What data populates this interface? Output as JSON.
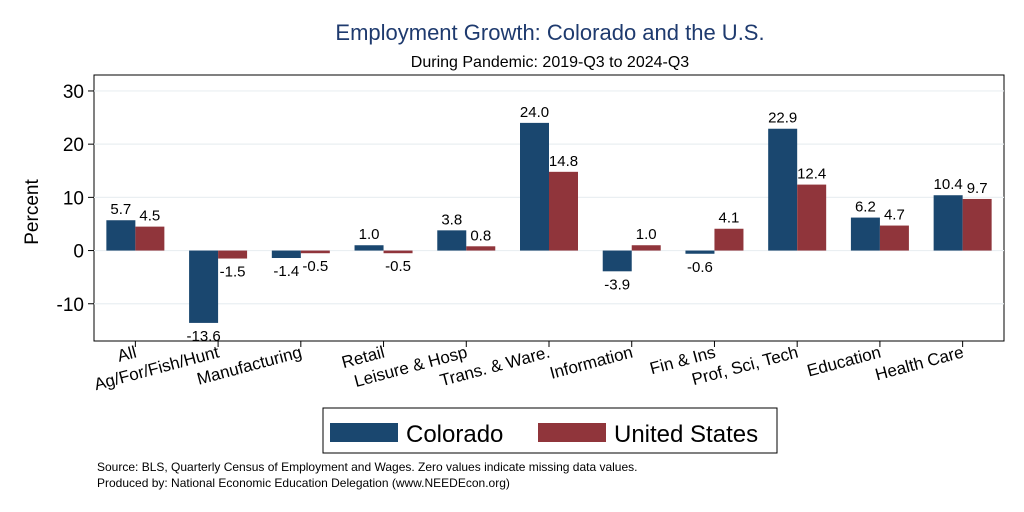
{
  "chart_data": {
    "type": "bar",
    "title": "Employment Growth: Colorado and the U.S.",
    "subtitle": "During Pandemic: 2019-Q3 to 2024-Q3",
    "xlabel": "",
    "ylabel": "Percent",
    "ylim": [
      -17,
      33
    ],
    "yticks": [
      30,
      20,
      10,
      0,
      -10
    ],
    "ytick_labels": [
      "30",
      "20",
      "10",
      "0",
      "-10"
    ],
    "grid": true,
    "legend_position": "bottom",
    "categories": [
      "All",
      "Ag/For/Fish/Hunt",
      "Manufacturing",
      "Retail",
      "Leisure & Hosp",
      "Trans. & Ware.",
      "Information",
      "Fin & Ins",
      "Prof, Sci, Tech",
      "Education",
      "Health Care"
    ],
    "series": [
      {
        "name": "Colorado",
        "color": "#1a476f",
        "values": [
          5.7,
          -13.6,
          -1.4,
          1.0,
          3.8,
          24.0,
          -3.9,
          -0.6,
          22.9,
          6.2,
          10.4
        ],
        "labels": [
          "5.7",
          "-13.6",
          "-1.4",
          "1.0",
          "3.8",
          "24.0",
          "-3.9",
          "-0.6",
          "22.9",
          "6.2",
          "10.4"
        ]
      },
      {
        "name": "United States",
        "color": "#90353b",
        "values": [
          4.5,
          -1.5,
          -0.5,
          -0.5,
          0.8,
          14.8,
          1.0,
          4.1,
          12.4,
          4.7,
          9.7
        ],
        "labels": [
          "4.5",
          "-1.5",
          "-0.5",
          "-0.5",
          "0.8",
          "14.8",
          "1.0",
          "4.1",
          "12.4",
          "4.7",
          "9.7"
        ]
      }
    ],
    "notes": [
      "Source: BLS, Quarterly Census of Employment and Wages. Zero values indicate missing data values.",
      "Produced by: National Economic Education Delegation (www.NEEDEcon.org)"
    ]
  },
  "colors": {
    "title": "#1e3a6e",
    "grid": "#eaeff2",
    "frame": "#000000"
  }
}
